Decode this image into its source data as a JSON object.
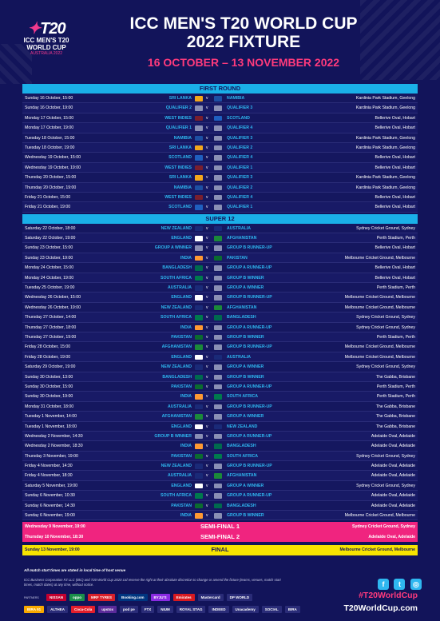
{
  "header": {
    "logo_mark": "T20",
    "logo_l1": "ICC MEN'S T20",
    "logo_l2": "WORLD CUP",
    "logo_l3": "AUSTRALIA 2022",
    "title_line1": "ICC MEN'S T20 WORLD CUP",
    "title_line2": "2022 FIXTURE",
    "dates": "16 OCTOBER – 13 NOVEMBER 2022"
  },
  "flag_colors": {
    "SRI LANKA": "#f3a71d",
    "NAMIBIA": "#1d4fa3",
    "QUALIFIER 1": "#8a8fb5",
    "QUALIFIER 2": "#8a8fb5",
    "QUALIFIER 3": "#8a8fb5",
    "QUALIFIER 4": "#8a8fb5",
    "WEST INDIES": "#7a1f2e",
    "SCOTLAND": "#1f5fbf",
    "NEW ZEALAND": "#1a2a78",
    "AUSTRALIA": "#1a2a78",
    "ENGLAND": "#ffffff",
    "AFGHANISTAN": "#1b8a3a",
    "GROUP A WINNER": "#8a8fb5",
    "GROUP B RUNNER-UP": "#8a8fb5",
    "INDIA": "#ff9933",
    "PAKISTAN": "#0b6b2f",
    "BANGLADESH": "#006a4e",
    "GROUP A RUNNER-UP": "#8a8fb5",
    "SOUTH AFRICA": "#007a4d",
    "GROUP B WINNER": "#8a8fb5"
  },
  "sections": {
    "first_round": "FIRST ROUND",
    "super12": "SUPER 12"
  },
  "vs": "v",
  "first_round": [
    {
      "date": "Sunday 16 October, 15:00",
      "t1": "SRI LANKA",
      "t2": "NAMIBIA",
      "venue": "Kardinia Park Stadium, Geelong"
    },
    {
      "date": "Sunday 16 October, 19:00",
      "t1": "QUALIFIER 2",
      "t2": "QUALIFIER 3",
      "venue": "Kardinia Park Stadium, Geelong"
    },
    {
      "date": "Monday 17 October, 15:00",
      "t1": "WEST INDIES",
      "t2": "SCOTLAND",
      "venue": "Bellerive Oval, Hobart"
    },
    {
      "date": "Monday 17 October, 19:00",
      "t1": "QUALIFIER 1",
      "t2": "QUALIFIER 4",
      "venue": "Bellerive Oval, Hobart"
    },
    {
      "date": "Tuesday 18 October, 15:00",
      "t1": "NAMIBIA",
      "t2": "QUALIFIER 3",
      "venue": "Kardinia Park Stadium, Geelong"
    },
    {
      "date": "Tuesday 18 October, 19:00",
      "t1": "SRI LANKA",
      "t2": "QUALIFIER 2",
      "venue": "Kardinia Park Stadium, Geelong"
    },
    {
      "date": "Wednesday 19 October, 15:00",
      "t1": "SCOTLAND",
      "t2": "QUALIFIER 4",
      "venue": "Bellerive Oval, Hobart"
    },
    {
      "date": "Wednesday 19 October, 19:00",
      "t1": "WEST INDIES",
      "t2": "QUALIFIER 1",
      "venue": "Bellerive Oval, Hobart"
    },
    {
      "date": "Thursday 20 October, 15:00",
      "t1": "SRI LANKA",
      "t2": "QUALIFIER 3",
      "venue": "Kardinia Park Stadium, Geelong"
    },
    {
      "date": "Thursday 20 October, 19:00",
      "t1": "NAMIBIA",
      "t2": "QUALIFIER 2",
      "venue": "Kardinia Park Stadium, Geelong"
    },
    {
      "date": "Friday 21 October, 15:00",
      "t1": "WEST INDIES",
      "t2": "QUALIFIER 4",
      "venue": "Bellerive Oval, Hobart"
    },
    {
      "date": "Friday 21 October, 19:00",
      "t1": "SCOTLAND",
      "t2": "QUALIFIER 1",
      "venue": "Bellerive Oval, Hobart"
    }
  ],
  "super12": [
    {
      "date": "Saturday 22 October, 18:00",
      "t1": "NEW ZEALAND",
      "t2": "AUSTRALIA",
      "venue": "Sydney Cricket Ground, Sydney"
    },
    {
      "date": "Saturday 22 October, 19:00",
      "t1": "ENGLAND",
      "t2": "AFGHANISTAN",
      "venue": "Perth Stadium, Perth"
    },
    {
      "date": "Sunday 23 October, 15:00",
      "t1": "GROUP A WINNER",
      "t2": "GROUP B RUNNER-UP",
      "venue": "Bellerive Oval, Hobart"
    },
    {
      "date": "Sunday 23 October, 19:00",
      "t1": "INDIA",
      "t2": "PAKISTAN",
      "venue": "Melbourne Cricket Ground, Melbourne"
    },
    {
      "date": "Monday 24 October, 15:00",
      "t1": "BANGLADESH",
      "t2": "GROUP A RUNNER-UP",
      "venue": "Bellerive Oval, Hobart"
    },
    {
      "date": "Monday 24 October, 19:00",
      "t1": "SOUTH AFRICA",
      "t2": "GROUP B WINNER",
      "venue": "Bellerive Oval, Hobart"
    },
    {
      "date": "Tuesday 25 October, 19:00",
      "t1": "AUSTRALIA",
      "t2": "GROUP A WINNER",
      "venue": "Perth Stadium, Perth"
    },
    {
      "date": "Wednesday 26 October, 15:00",
      "t1": "ENGLAND",
      "t2": "GROUP B RUNNER-UP",
      "venue": "Melbourne Cricket Ground, Melbourne"
    },
    {
      "date": "Wednesday 26 October, 19:00",
      "t1": "NEW ZEALAND",
      "t2": "AFGHANISTAN",
      "venue": "Melbourne Cricket Ground, Melbourne"
    },
    {
      "date": "Thursday 27 October, 14:00",
      "t1": "SOUTH AFRICA",
      "t2": "BANGLADESH",
      "venue": "Sydney Cricket Ground, Sydney"
    },
    {
      "date": "Thursday 27 October, 18:00",
      "t1": "INDIA",
      "t2": "GROUP A RUNNER-UP",
      "venue": "Sydney Cricket Ground, Sydney"
    },
    {
      "date": "Thursday 27 October, 19:00",
      "t1": "PAKISTAN",
      "t2": "GROUP B WINNER",
      "venue": "Perth Stadium, Perth"
    },
    {
      "date": "Friday 28 October, 15:00",
      "t1": "AFGHANISTAN",
      "t2": "GROUP B RUNNER-UP",
      "venue": "Melbourne Cricket Ground, Melbourne"
    },
    {
      "date": "Friday 28 October, 19:00",
      "t1": "ENGLAND",
      "t2": "AUSTRALIA",
      "venue": "Melbourne Cricket Ground, Melbourne"
    },
    {
      "date": "Saturday 29 October, 19:00",
      "t1": "NEW ZEALAND",
      "t2": "GROUP A WINNER",
      "venue": "Sydney Cricket Ground, Sydney"
    },
    {
      "date": "Sunday 30 October, 13:00",
      "t1": "BANGLADESH",
      "t2": "GROUP B WINNER",
      "venue": "The Gabba, Brisbane"
    },
    {
      "date": "Sunday 30 October, 15:00",
      "t1": "PAKISTAN",
      "t2": "GROUP A RUNNER-UP",
      "venue": "Perth Stadium, Perth"
    },
    {
      "date": "Sunday 30 October, 19:00",
      "t1": "INDIA",
      "t2": "SOUTH AFRICA",
      "venue": "Perth Stadium, Perth"
    },
    {
      "date": "Monday 31 October, 18:00",
      "t1": "AUSTRALIA",
      "t2": "GROUP B RUNNER-UP",
      "venue": "The Gabba, Brisbane"
    },
    {
      "date": "Tuesday 1 November, 14:00",
      "t1": "AFGHANISTAN",
      "t2": "GROUP A WINNER",
      "venue": "The Gabba, Brisbane"
    },
    {
      "date": "Tuesday 1 November, 18:00",
      "t1": "ENGLAND",
      "t2": "NEW ZEALAND",
      "venue": "The Gabba, Brisbane"
    },
    {
      "date": "Wednesday 2 November, 14:30",
      "t1": "GROUP B WINNER",
      "t2": "GROUP A RUNNER-UP",
      "venue": "Adelaide Oval, Adelaide"
    },
    {
      "date": "Wednesday 2 November, 18:30",
      "t1": "INDIA",
      "t2": "BANGLADESH",
      "venue": "Adelaide Oval, Adelaide"
    },
    {
      "date": "Thursday 3 November, 19:00",
      "t1": "PAKISTAN",
      "t2": "SOUTH AFRICA",
      "venue": "Sydney Cricket Ground, Sydney"
    },
    {
      "date": "Friday 4 November, 14:30",
      "t1": "NEW ZEALAND",
      "t2": "GROUP B RUNNER-UP",
      "venue": "Adelaide Oval, Adelaide"
    },
    {
      "date": "Friday 4 November, 18:30",
      "t1": "AUSTRALIA",
      "t2": "AFGHANISTAN",
      "venue": "Adelaide Oval, Adelaide"
    },
    {
      "date": "Saturday 5 November, 19:00",
      "t1": "ENGLAND",
      "t2": "GROUP A WINNER",
      "venue": "Sydney Cricket Ground, Sydney"
    },
    {
      "date": "Sunday 6 November, 10:30",
      "t1": "SOUTH AFRICA",
      "t2": "GROUP A RUNNER-UP",
      "venue": "Adelaide Oval, Adelaide"
    },
    {
      "date": "Sunday 6 November, 14:30",
      "t1": "PAKISTAN",
      "t2": "BANGLADESH",
      "venue": "Adelaide Oval, Adelaide"
    },
    {
      "date": "Sunday 6 November, 19:00",
      "t1": "INDIA",
      "t2": "GROUP B WINNER",
      "venue": "Melbourne Cricket Ground, Melbourne"
    }
  ],
  "knockouts": [
    {
      "date": "Wednesday 9 November, 19:00",
      "match": "SEMI-FINAL 1",
      "venue": "Sydney Cricket Ground, Sydney",
      "style": "pink"
    },
    {
      "date": "Thursday 10 November, 18:30",
      "match": "SEMI-FINAL 2",
      "venue": "Adelaide Oval, Adelaide",
      "style": "pink"
    },
    {
      "date": "Sunday 13 November, 19:00",
      "match": "FINAL",
      "venue": "Melbourne Cricket Ground, Melbourne",
      "style": "yellow"
    }
  ],
  "footer": {
    "note1": "All match start times are stated in local time of host venue",
    "note2": "ICC Business Corporation FZ LLC (IBC) and T20 World Cup 2020 Ltd reserve the right at their absolute discretion to change or amend the fixture (teams, venues, match start times, match dates) at any time, without notice.",
    "partners_label": "PARTNERS",
    "sponsors_row1": [
      {
        "name": "NISSAN",
        "color": "#c3002f"
      },
      {
        "name": "oppo",
        "color": "#1a8f4a"
      },
      {
        "name": "MRF TYRES",
        "color": "#d8202a"
      },
      {
        "name": "Booking.com",
        "color": "#003580"
      },
      {
        "name": "BYJU'S",
        "color": "#8a2be2"
      },
      {
        "name": "Emirates",
        "color": "#d71920"
      },
      {
        "name": "Mastercard",
        "color": "#2a2c78"
      },
      {
        "name": "DP WORLD",
        "color": "#2a2c78"
      }
    ],
    "sponsors_row2": [
      {
        "name": "BIRA 91",
        "color": "#f7a800"
      },
      {
        "name": "ALTHEA",
        "color": "#2a2c78"
      },
      {
        "name": "Coca-Cola",
        "color": "#e41e2b"
      },
      {
        "name": "upstox",
        "color": "#5a2a9a"
      },
      {
        "name": "pod pe",
        "color": "#2a2c78"
      },
      {
        "name": "FTX",
        "color": "#2a2c78"
      },
      {
        "name": "NIUM",
        "color": "#2a2c78"
      },
      {
        "name": "ROYAL STAG",
        "color": "#2a2c78"
      },
      {
        "name": "INDEED",
        "color": "#2a2c78"
      },
      {
        "name": "Unacademy",
        "color": "#2a2c78"
      },
      {
        "name": "SOCIAL",
        "color": "#2a2c78"
      },
      {
        "name": "BIRA",
        "color": "#2a2c78"
      }
    ],
    "social_fb": "f",
    "social_tw": "t",
    "social_ig": "◎",
    "hashtag": "#T20WorldCup",
    "website": "T20WorldCup.com"
  }
}
